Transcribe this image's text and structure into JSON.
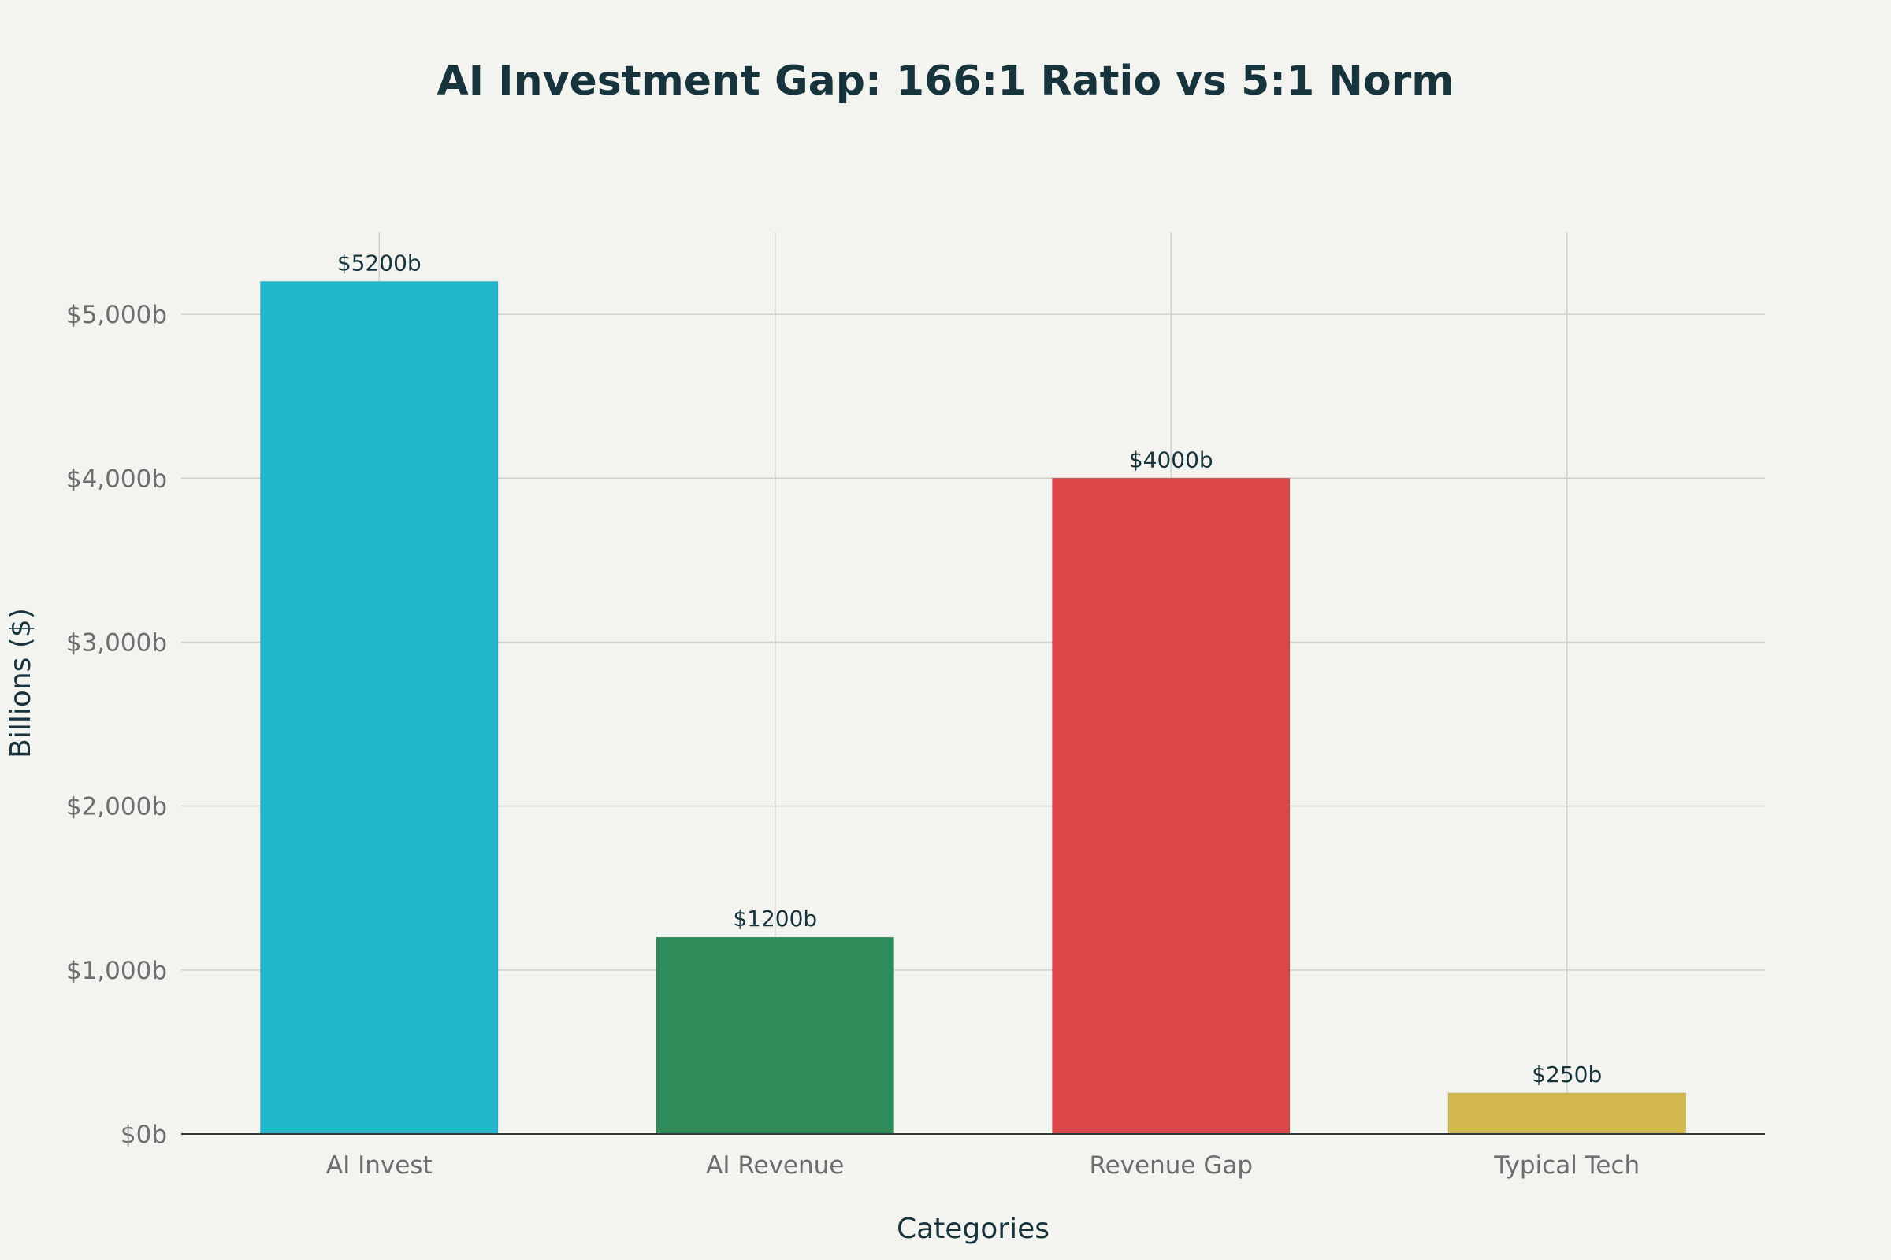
{
  "chart_data": {
    "type": "bar",
    "title": "AI Investment Gap: 166:1 Ratio vs 5:1 Norm",
    "xlabel": "Categories",
    "ylabel": "Billions ($)",
    "categories": [
      "AI Invest",
      "AI Revenue",
      "Revenue Gap",
      "Typical Tech"
    ],
    "values": [
      5200,
      1200,
      4000,
      250
    ],
    "data_labels": [
      "$5200b",
      "$1200b",
      "$4000b",
      "$250b"
    ],
    "colors": [
      "#21b8cc",
      "#2e8b5a",
      "#db4648",
      "#d4b94f"
    ],
    "ylim": [
      0,
      5500
    ],
    "yticks": [
      0,
      1000,
      2000,
      3000,
      4000,
      5000
    ],
    "ytick_labels": [
      "$0b",
      "$1,000b",
      "$2,000b",
      "$3,000b",
      "$4,000b",
      "$5,000b"
    ],
    "grid": true,
    "legend": "none"
  }
}
